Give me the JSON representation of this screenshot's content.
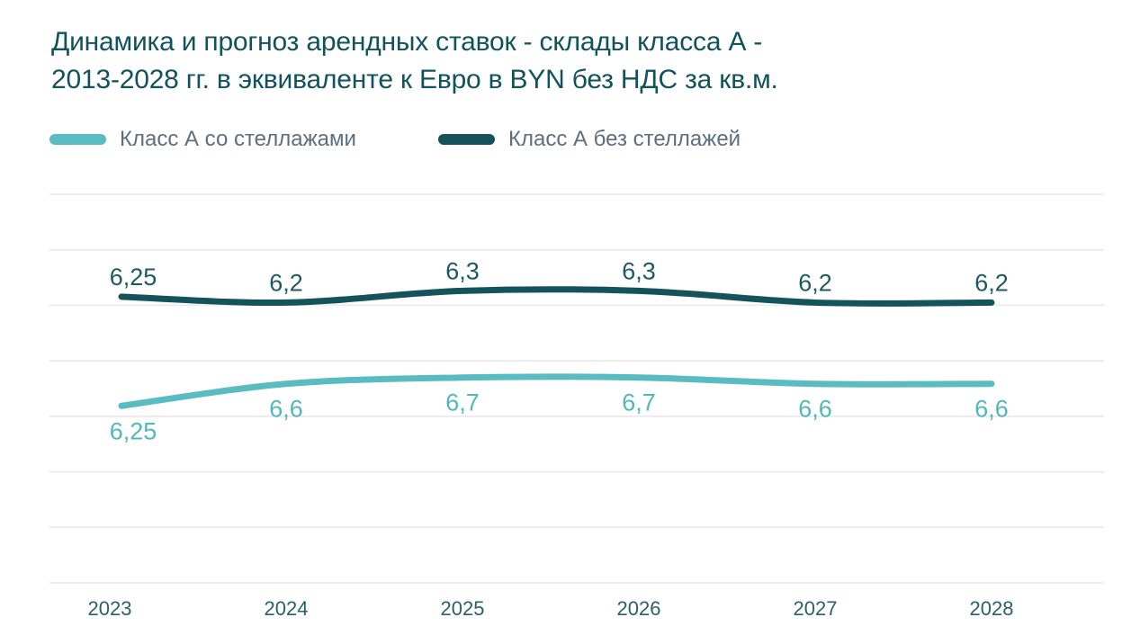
{
  "title": {
    "lines": [
      "Динамика и прогноз арендных ставок - склады класса А -",
      "2013-2028 гг. в эквиваленте к Евро в BYN без НДС за кв.м."
    ]
  },
  "legend": {
    "items": [
      {
        "label": "Класс А со стеллажами",
        "color": "#58bcc2"
      },
      {
        "label": "Класс А без стеллажей",
        "color": "#14535b"
      }
    ]
  },
  "chart_data": {
    "type": "line",
    "title": "Динамика и прогноз арендных ставок - склады класса А - 2013-2028 гг. в эквиваленте к Евро в BYN без НДС за кв.м.",
    "x": [
      "2023",
      "2024",
      "2025",
      "2026",
      "2027",
      "2028"
    ],
    "series": [
      {
        "name": "Класс А со стеллажами",
        "color": "#58bcc2",
        "label_color": "#4fb7bd",
        "values": [
          6.25,
          6.6,
          6.7,
          6.7,
          6.6,
          6.6
        ],
        "point_labels": [
          "6,25",
          "6,6",
          "6,7",
          "6,7",
          "6,6",
          "6,6"
        ],
        "label_position": "below",
        "axis": {
          "min": 3.44,
          "max": 9.61
        }
      },
      {
        "name": "Класс А без стеллажей",
        "color": "#14535b",
        "label_color": "#1d5965",
        "values": [
          6.25,
          6.2,
          6.3,
          6.3,
          6.2,
          6.2
        ],
        "point_labels": [
          "6,25",
          "6,2",
          "6,3",
          "6,3",
          "6,2",
          "6,2"
        ],
        "label_position": "above",
        "axis": {
          "min": 3.82,
          "max": 7.12
        }
      }
    ],
    "xlabel": "",
    "ylabel": "",
    "grid": true,
    "grid_color": "#ececec",
    "tick_color": "#29606c",
    "legend_position": "top-left",
    "y_axis_visible": false
  }
}
